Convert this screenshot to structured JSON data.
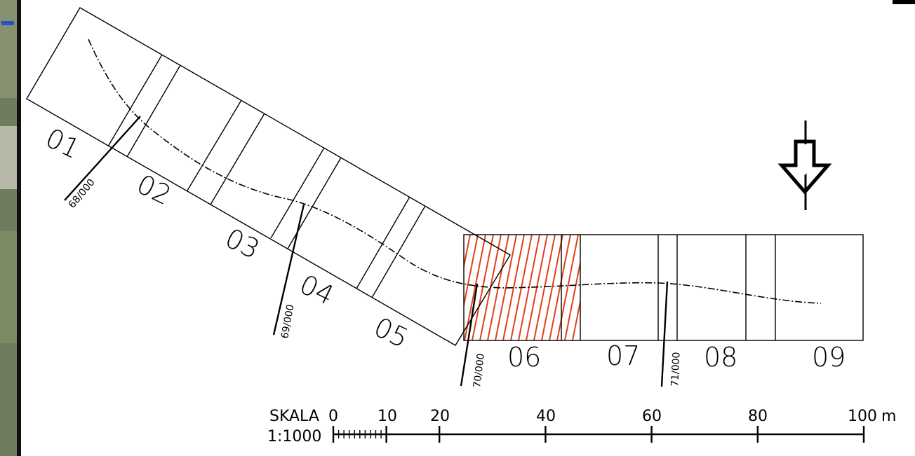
{
  "sections": [
    {
      "id": "01",
      "label": "01"
    },
    {
      "id": "02",
      "label": "02"
    },
    {
      "id": "03",
      "label": "03"
    },
    {
      "id": "04",
      "label": "04"
    },
    {
      "id": "05",
      "label": "05"
    },
    {
      "id": "06",
      "label": "06"
    },
    {
      "id": "07",
      "label": "07"
    },
    {
      "id": "08",
      "label": "08"
    },
    {
      "id": "09",
      "label": "09"
    }
  ],
  "chainage_marks": [
    {
      "id": "68",
      "label": "68/000"
    },
    {
      "id": "69",
      "label": "69/000"
    },
    {
      "id": "70",
      "label": "70/000"
    },
    {
      "id": "71",
      "label": "71/000"
    }
  ],
  "highlighted_section": "06",
  "highlight_color": "#e0401a",
  "north_arrow_icon": "north-arrow-icon",
  "scale": {
    "title": "SKALA",
    "ratio": "1:1000",
    "ticks": [
      "0",
      "10",
      "20",
      "40",
      "60",
      "80",
      "100"
    ],
    "unit": "m"
  }
}
